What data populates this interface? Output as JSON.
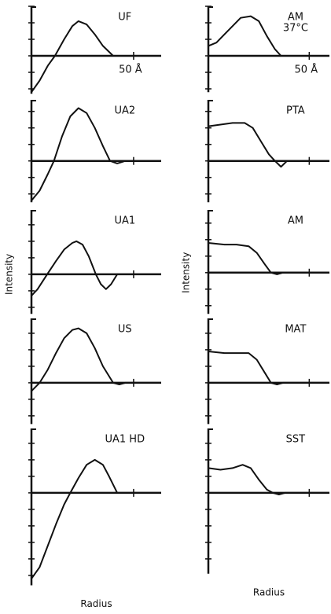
{
  "chart_data": [
    {
      "type": "line",
      "title": "UF",
      "annotation": "50 Å",
      "x": [
        0,
        4,
        8,
        11.5,
        16,
        20,
        23,
        27,
        31,
        35,
        40,
        44,
        63.5
      ],
      "values": [
        -2.2,
        -1.5,
        -0.6,
        0,
        1.0,
        1.8,
        2.1,
        1.9,
        1.3,
        0.6,
        0,
        0,
        0
      ],
      "xlim": [
        0,
        63.5
      ],
      "xticks": [
        50
      ],
      "ylim": [
        -2.3,
        3
      ],
      "yticks": [
        -2,
        -1,
        0,
        1,
        2,
        3
      ]
    },
    {
      "type": "line",
      "title": "UA2",
      "x": [
        0,
        4,
        8,
        11,
        15,
        19,
        23,
        27,
        31,
        35,
        38.5,
        42,
        46,
        63.5
      ],
      "values": [
        -2.4,
        -1.8,
        -0.8,
        0,
        1.5,
        2.7,
        3.2,
        2.9,
        2.0,
        0.9,
        0,
        -0.15,
        0,
        0
      ],
      "xlim": [
        0,
        63.5
      ],
      "xticks": [
        50
      ],
      "ylim": [
        -2.5,
        3.7
      ],
      "yticks": [
        -2,
        -1,
        0,
        1,
        2,
        3
      ]
    },
    {
      "type": "line",
      "title": "UA1",
      "ylabel": "Intensity",
      "x": [
        0,
        3,
        7.7,
        12,
        16,
        20,
        22,
        25,
        28,
        31.5,
        34,
        36.5,
        39,
        42,
        63.5
      ],
      "values": [
        -1.3,
        -0.9,
        0,
        0.8,
        1.5,
        1.9,
        2.0,
        1.8,
        1.1,
        0,
        -0.6,
        -0.9,
        -0.6,
        0,
        0
      ],
      "xlim": [
        0,
        63.5
      ],
      "xticks": [
        50
      ],
      "ylim": [
        -2.4,
        3.9
      ],
      "yticks": [
        -2,
        -1,
        0,
        1,
        2,
        3
      ]
    },
    {
      "type": "line",
      "title": "US",
      "x": [
        0,
        4,
        8,
        12,
        16,
        20,
        23,
        27,
        31,
        35,
        40,
        43,
        46,
        63.5
      ],
      "values": [
        -0.5,
        0,
        0.8,
        1.8,
        2.7,
        3.2,
        3.3,
        3.0,
        2.1,
        1.0,
        0,
        -0.1,
        0,
        0
      ],
      "xlim": [
        0,
        63.5
      ],
      "xticks": [
        50
      ],
      "ylim": [
        -2.5,
        3.9
      ],
      "yticks": [
        -2,
        -1,
        0,
        1,
        2,
        3
      ]
    },
    {
      "type": "line",
      "title": "UA1 HD",
      "xlabel": "Radius",
      "x": [
        0,
        4,
        8,
        12,
        16,
        19,
        23,
        27,
        31,
        35,
        38,
        42,
        63.5
      ],
      "values": [
        -5.2,
        -4.5,
        -3.2,
        -1.9,
        -0.7,
        0,
        0.9,
        1.7,
        2.0,
        1.7,
        1.0,
        0,
        0
      ],
      "xlim": [
        0,
        63.5
      ],
      "xticks": [
        50
      ],
      "ylim": [
        -5.6,
        3.9
      ],
      "yticks": [
        -5,
        -4,
        -3,
        -2,
        -1,
        0,
        1,
        2,
        3
      ]
    },
    {
      "type": "line",
      "title": "AM",
      "subtitle": "37°C",
      "annotation": "50 Å",
      "x": [
        0,
        4,
        8,
        12,
        16,
        21,
        25,
        29,
        33,
        36,
        60
      ],
      "values": [
        0.6,
        0.8,
        1.3,
        1.8,
        2.3,
        2.4,
        2.1,
        1.2,
        0.4,
        0,
        0
      ],
      "xlim": [
        0,
        60
      ],
      "xticks": [
        50
      ],
      "ylim": [
        -2.2,
        3
      ],
      "yticks": [
        -2,
        -1,
        0,
        1,
        2,
        3
      ]
    },
    {
      "type": "line",
      "title": "PTA",
      "x": [
        0,
        6,
        12,
        18,
        22,
        26,
        30,
        33,
        36,
        39,
        60
      ],
      "values": [
        2.1,
        2.2,
        2.3,
        2.3,
        2.0,
        1.2,
        0.4,
        0,
        -0.35,
        0,
        0
      ],
      "xlim": [
        0,
        60
      ],
      "xticks": [
        50
      ],
      "ylim": [
        -2.5,
        3.7
      ],
      "yticks": [
        -2,
        -1,
        0,
        1,
        2,
        3
      ]
    },
    {
      "type": "line",
      "title": "AM",
      "ylabel": "Intensity",
      "x": [
        0,
        8,
        14,
        20,
        24,
        28,
        31,
        34,
        37,
        60
      ],
      "values": [
        1.8,
        1.7,
        1.7,
        1.6,
        1.2,
        0.5,
        0,
        -0.1,
        0,
        0
      ],
      "xlim": [
        0,
        60
      ],
      "xticks": [
        50
      ],
      "ylim": [
        -2.5,
        3.8
      ],
      "yticks": [
        -2,
        -1,
        0,
        1,
        2,
        3
      ]
    },
    {
      "type": "line",
      "title": "MAT",
      "x": [
        0,
        8,
        14,
        20,
        24,
        28,
        31,
        34,
        37,
        60
      ],
      "values": [
        1.9,
        1.8,
        1.8,
        1.8,
        1.4,
        0.6,
        0,
        -0.1,
        0,
        0
      ],
      "xlim": [
        0,
        60
      ],
      "xticks": [
        50
      ],
      "ylim": [
        -2.5,
        3.9
      ],
      "yticks": [
        -2,
        -1,
        0,
        1,
        2,
        3
      ]
    },
    {
      "type": "line",
      "title": "SST",
      "xlabel": "Radius",
      "x": [
        0,
        6,
        12,
        17,
        21,
        25,
        29,
        32,
        35,
        38,
        60
      ],
      "values": [
        1.5,
        1.4,
        1.5,
        1.7,
        1.5,
        0.8,
        0.2,
        0,
        -0.1,
        0,
        0
      ],
      "xlim": [
        0,
        60
      ],
      "xticks": [
        50
      ],
      "ylim": [
        -4.9,
        3.9
      ],
      "yticks": [
        -4,
        -3,
        -2,
        -1,
        0,
        1,
        2,
        3
      ]
    }
  ]
}
